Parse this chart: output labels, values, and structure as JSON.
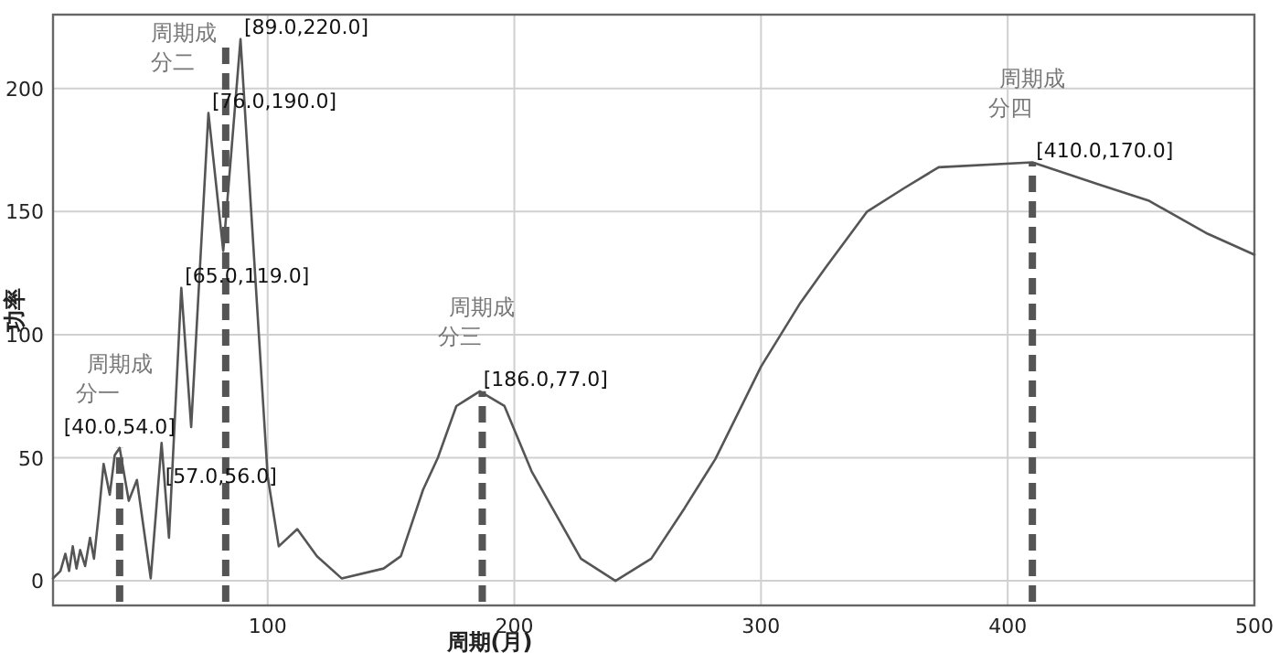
{
  "chart_data": {
    "type": "line",
    "xlabel": "周期(月)",
    "ylabel": "功率",
    "color": "#555555",
    "xlim": [
      13,
      500
    ],
    "ylim": [
      -10,
      230
    ],
    "xticks": [
      100,
      200,
      300,
      400,
      500
    ],
    "yticks": [
      0,
      50,
      100,
      150,
      200
    ],
    "grid": true,
    "x": [
      13,
      16,
      18,
      19.5,
      21,
      22.5,
      24,
      26,
      28,
      29.6,
      31.6,
      33.5,
      36,
      38,
      40,
      43.7,
      47,
      52.6,
      57,
      60,
      65,
      69,
      76,
      82,
      89,
      100,
      104.5,
      112,
      120,
      130,
      147,
      154,
      163,
      169,
      176.5,
      186,
      196,
      207,
      227,
      241,
      255.5,
      269,
      281.5,
      300,
      316,
      326,
      343,
      358,
      372,
      410,
      437,
      457,
      481,
      500
    ],
    "values": [
      1,
      4,
      11,
      4,
      14,
      5,
      12.5,
      6,
      17.5,
      9,
      27.5,
      47.5,
      35,
      51,
      54,
      32.5,
      41,
      1,
      56,
      17.5,
      119,
      62.5,
      190,
      134,
      220,
      42.5,
      14,
      21,
      10,
      1,
      5,
      10,
      37,
      50,
      71,
      77,
      71,
      44.5,
      9,
      0,
      9,
      29.5,
      49.5,
      87,
      113,
      127,
      150,
      159.5,
      168,
      170,
      161,
      154.5,
      141,
      132.5
    ],
    "ref_lines": [
      {
        "axis": "x",
        "value": 40,
        "label": "周期成分一",
        "color": "#555555",
        "line_style": "dashed"
      },
      {
        "axis": "x",
        "value": 83,
        "label": "周期成分二",
        "color": "#555555",
        "line_style": "dashed"
      },
      {
        "axis": "x",
        "value": 187,
        "label": "周期成分三",
        "color": "#555555",
        "line_style": "dashed"
      },
      {
        "axis": "x",
        "value": 410,
        "label": "周期成分四",
        "color": "#555555",
        "line_style": "dashed"
      }
    ],
    "annotations": [
      {
        "text": "[40.0,54.0]",
        "x": 40,
        "y": 54
      },
      {
        "text": "[57.0,56.0]",
        "x": 57,
        "y": 56
      },
      {
        "text": "[65.0,119.0]",
        "x": 65,
        "y": 119
      },
      {
        "text": "[76.0,190.0]",
        "x": 76,
        "y": 190
      },
      {
        "text": "[89.0,220.0]",
        "x": 89,
        "y": 220
      },
      {
        "text": "[186.0,77.0]",
        "x": 186,
        "y": 77
      },
      {
        "text": "[410.0,170.0]",
        "x": 410,
        "y": 170
      }
    ]
  }
}
